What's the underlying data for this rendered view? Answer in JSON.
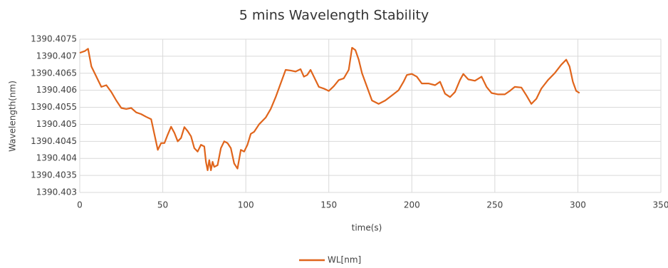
{
  "chart_data": {
    "type": "line",
    "title": "5 mins Wavelength Stability",
    "x_label": "time(s)",
    "y_label": "Wavelength(nm)",
    "x": [
      0,
      3,
      5,
      7,
      9,
      11,
      13,
      16,
      19,
      22,
      25,
      28,
      31,
      34,
      37,
      40,
      43,
      45,
      47,
      49,
      51,
      53,
      55,
      57,
      59,
      61,
      63,
      65,
      67,
      69,
      71,
      73,
      75,
      76,
      77,
      78,
      79,
      80,
      81,
      83,
      85,
      87,
      89,
      91,
      93,
      95,
      97,
      99,
      101,
      103,
      105,
      108,
      112,
      115,
      118,
      121,
      124,
      127,
      130,
      133,
      135,
      137,
      139,
      141,
      144,
      147,
      150,
      153,
      156,
      159,
      162,
      164,
      166,
      168,
      170,
      173,
      176,
      180,
      184,
      188,
      192,
      195,
      197,
      200,
      203,
      206,
      210,
      214,
      217,
      220,
      223,
      226,
      229,
      231,
      234,
      238,
      242,
      245,
      248,
      252,
      256,
      259,
      262,
      266,
      269,
      272,
      275,
      278,
      282,
      286,
      290,
      293,
      295,
      297,
      299,
      301
    ],
    "series": [
      {
        "name": "WL[nm]",
        "color": "#e0651c",
        "values": [
          1390.4071,
          1390.40715,
          1390.40722,
          1390.4067,
          1390.4065,
          1390.4063,
          1390.4061,
          1390.40615,
          1390.40595,
          1390.4057,
          1390.40548,
          1390.40545,
          1390.40548,
          1390.40535,
          1390.4053,
          1390.40522,
          1390.40515,
          1390.4047,
          1390.40425,
          1390.40445,
          1390.40445,
          1390.4047,
          1390.40493,
          1390.40475,
          1390.4045,
          1390.4046,
          1390.40492,
          1390.4048,
          1390.40465,
          1390.4043,
          1390.4042,
          1390.4044,
          1390.40435,
          1390.4039,
          1390.40365,
          1390.40395,
          1390.40365,
          1390.4039,
          1390.40375,
          1390.4038,
          1390.4043,
          1390.4045,
          1390.40445,
          1390.4043,
          1390.40385,
          1390.4037,
          1390.40425,
          1390.4042,
          1390.4044,
          1390.40472,
          1390.40478,
          1390.405,
          1390.4052,
          1390.40545,
          1390.4058,
          1390.4062,
          1390.4066,
          1390.40658,
          1390.40655,
          1390.40662,
          1390.4064,
          1390.40645,
          1390.4066,
          1390.4064,
          1390.4061,
          1390.40605,
          1390.40598,
          1390.40612,
          1390.4063,
          1390.40635,
          1390.4066,
          1390.40725,
          1390.40718,
          1390.4069,
          1390.4065,
          1390.4061,
          1390.4057,
          1390.4056,
          1390.4057,
          1390.40585,
          1390.406,
          1390.40625,
          1390.40645,
          1390.40648,
          1390.4064,
          1390.4062,
          1390.4062,
          1390.40615,
          1390.40625,
          1390.4059,
          1390.4058,
          1390.40595,
          1390.4063,
          1390.40648,
          1390.40632,
          1390.40628,
          1390.4064,
          1390.4061,
          1390.40592,
          1390.40588,
          1390.40588,
          1390.40598,
          1390.4061,
          1390.40608,
          1390.40585,
          1390.4056,
          1390.40575,
          1390.40605,
          1390.4063,
          1390.4065,
          1390.40675,
          1390.4069,
          1390.4067,
          1390.40625,
          1390.40598,
          1390.40592
        ]
      }
    ],
    "xlim": [
      0,
      350
    ],
    "xticks": [
      0,
      50,
      100,
      150,
      200,
      250,
      300,
      350
    ],
    "ylim": [
      1390.403,
      1390.4075
    ],
    "yticks": [
      1390.403,
      1390.4035,
      1390.404,
      1390.4045,
      1390.405,
      1390.4055,
      1390.406,
      1390.4065,
      1390.407,
      1390.4075
    ],
    "grid": true,
    "legend": "bottom"
  }
}
